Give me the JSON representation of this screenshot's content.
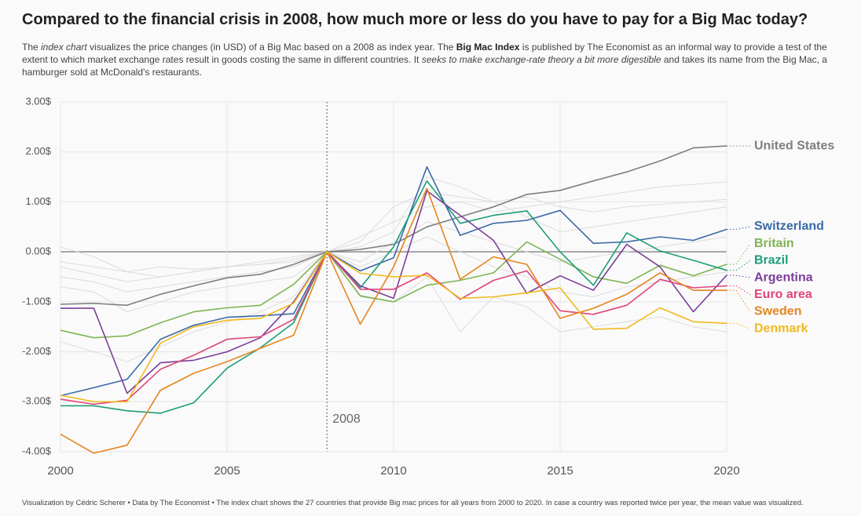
{
  "chart_data": {
    "type": "line",
    "title": "Compared to the financial crisis in 2008, how much more or less do you have to pay for a Big Mac today?",
    "subtitle": [
      "The ",
      "index chart",
      " visualizes the price changes (in USD) of a Big Mac based on a 2008 as index year. The ",
      "Big Mac Index",
      " is published by The Economist as an informal way to provide a test of the extent to which market exchange rates result in goods costing the same in different countries. It ",
      "seeks to make exchange-rate theory a bit more digestible",
      " and takes its name from the Big Mac, a hamburger sold at McDonald's restaurants."
    ],
    "subtitle_styles": [
      "normal",
      "italic",
      "normal",
      "bold",
      "normal",
      "italic",
      "normal"
    ],
    "caption": "Visualization by Cédric Scherer  •  Data by The Economist  •  The index chart shows the 27 countries that provide Big mac prices for all years from 2000 to 2020. In case a country was reported twice per year, the mean value was visualized.",
    "x": [
      2000,
      2001,
      2002,
      2003,
      2004,
      2005,
      2006,
      2007,
      2008,
      2009,
      2010,
      2011,
      2012,
      2013,
      2014,
      2015,
      2016,
      2017,
      2018,
      2019,
      2020
    ],
    "xlim": [
      2000,
      2020
    ],
    "xticks": [
      2000,
      2005,
      2010,
      2015,
      2020
    ],
    "ylim": [
      -4,
      3
    ],
    "yticks": [
      {
        "value": 3,
        "label": "3.00$"
      },
      {
        "value": 2,
        "label": "2.00$"
      },
      {
        "value": 1,
        "label": "1.00$"
      },
      {
        "value": 0,
        "label": "0.00$"
      },
      {
        "value": -1,
        "label": "-1.00$"
      },
      {
        "value": -2,
        "label": "-2.00$"
      },
      {
        "value": -3,
        "label": "-3.00$"
      },
      {
        "value": -4,
        "label": "-4.00$"
      }
    ],
    "grid": true,
    "reference_x": 2008,
    "other_color": "#dcdcdc",
    "other_series": [
      {
        "values": [
          -0.3,
          -0.45,
          -0.6,
          -0.5,
          -0.4,
          -0.3,
          -0.25,
          -0.2,
          0,
          0.3,
          0.6,
          0.9,
          1.0,
          0.8,
          0.9,
          1.0,
          1.1,
          1.2,
          1.3,
          1.35,
          1.4
        ]
      },
      {
        "values": [
          -0.5,
          -0.6,
          -0.8,
          -0.7,
          -0.6,
          -0.5,
          -0.4,
          -0.3,
          0,
          0.1,
          0.4,
          1.5,
          1.3,
          1.0,
          0.7,
          0.4,
          0.5,
          0.6,
          0.7,
          0.8,
          0.9
        ]
      },
      {
        "values": [
          -0.2,
          -0.3,
          -0.4,
          -0.3,
          -0.35,
          -0.3,
          -0.25,
          -0.15,
          0,
          -0.2,
          0.2,
          0.6,
          0.4,
          0.2,
          0.0,
          -0.2,
          -0.1,
          0.0,
          0.1,
          0.2,
          0.3
        ]
      },
      {
        "values": [
          -1.8,
          -2.0,
          -2.2,
          -1.9,
          -1.6,
          -1.4,
          -1.2,
          -0.9,
          0,
          -0.9,
          -1.0,
          -0.5,
          -1.6,
          -0.9,
          -1.1,
          -1.6,
          -1.5,
          -1.4,
          -1.3,
          -1.5,
          -1.6
        ]
      },
      {
        "values": [
          -0.7,
          -0.8,
          -1.2,
          -1.0,
          -0.8,
          -0.7,
          -0.6,
          -0.5,
          0,
          -0.3,
          0.0,
          0.3,
          0.0,
          -0.3,
          -0.5,
          -0.8,
          -0.9,
          -0.7,
          -0.6,
          -0.5,
          -0.4
        ]
      },
      {
        "values": [
          0.1,
          -0.1,
          -0.4,
          -0.5,
          -0.4,
          -0.3,
          -0.2,
          -0.1,
          0,
          0.2,
          0.9,
          1.2,
          1.1,
          1.0,
          1.1,
          0.9,
          0.8,
          0.9,
          0.95,
          1.0,
          1.05
        ]
      }
    ],
    "series": [
      {
        "name": "United States",
        "color": "#7f7f7f",
        "values": [
          -1.05,
          -1.03,
          -1.07,
          -0.85,
          -0.68,
          -0.52,
          -0.45,
          -0.25,
          0,
          0.05,
          0.15,
          0.5,
          0.7,
          0.9,
          1.15,
          1.23,
          1.42,
          1.6,
          1.82,
          2.08,
          2.12
        ]
      },
      {
        "name": "Switzerland",
        "color": "#3b6aa8",
        "values": [
          -2.88,
          -2.72,
          -2.55,
          -1.75,
          -1.47,
          -1.31,
          -1.28,
          -1.24,
          0,
          -0.38,
          -0.12,
          1.7,
          0.33,
          0.57,
          0.63,
          0.83,
          0.17,
          0.2,
          0.3,
          0.23,
          0.45
        ]
      },
      {
        "name": "Britain",
        "color": "#7fb453",
        "values": [
          -1.57,
          -1.72,
          -1.68,
          -1.42,
          -1.2,
          -1.12,
          -1.07,
          -0.65,
          0,
          -0.88,
          -1.0,
          -0.67,
          -0.57,
          -0.42,
          0.2,
          -0.15,
          -0.5,
          -0.63,
          -0.27,
          -0.48,
          -0.25
        ]
      },
      {
        "name": "Brazil",
        "color": "#1b9e77",
        "values": [
          -3.08,
          -3.08,
          -3.18,
          -3.23,
          -3.02,
          -2.33,
          -1.92,
          -1.42,
          0,
          -0.72,
          0.1,
          1.42,
          0.57,
          0.73,
          0.82,
          0.0,
          -0.67,
          0.38,
          0.02,
          -0.17,
          -0.37
        ]
      },
      {
        "name": "Argentina",
        "color": "#7b3f98",
        "values": [
          -1.13,
          -1.13,
          -2.83,
          -2.22,
          -2.17,
          -2.0,
          -1.72,
          -1.0,
          0,
          -0.68,
          -0.93,
          1.22,
          0.73,
          0.23,
          -0.83,
          -0.48,
          -0.77,
          0.15,
          -0.3,
          -1.2,
          -0.47
        ]
      },
      {
        "name": "Euro area",
        "color": "#e0457b",
        "values": [
          -2.95,
          -3.05,
          -2.97,
          -2.35,
          -2.07,
          -1.75,
          -1.7,
          -1.35,
          0,
          -0.75,
          -0.75,
          -0.42,
          -0.95,
          -0.57,
          -0.38,
          -1.18,
          -1.25,
          -1.07,
          -0.55,
          -0.72,
          -0.68
        ]
      },
      {
        "name": "Sweden",
        "color": "#e5851f",
        "values": [
          -3.65,
          -4.03,
          -3.87,
          -2.77,
          -2.43,
          -2.2,
          -1.93,
          -1.67,
          0,
          -1.45,
          -0.3,
          1.27,
          -0.55,
          -0.1,
          -0.25,
          -1.33,
          -1.13,
          -0.85,
          -0.42,
          -0.77,
          -0.77
        ]
      },
      {
        "name": "Denmark",
        "color": "#f2b91e",
        "values": [
          -2.87,
          -3.0,
          -3.0,
          -1.83,
          -1.5,
          -1.37,
          -1.33,
          -1.03,
          0,
          -0.43,
          -0.5,
          -0.47,
          -0.93,
          -0.9,
          -0.82,
          -0.72,
          -1.55,
          -1.53,
          -1.12,
          -1.4,
          -1.43
        ]
      }
    ]
  }
}
